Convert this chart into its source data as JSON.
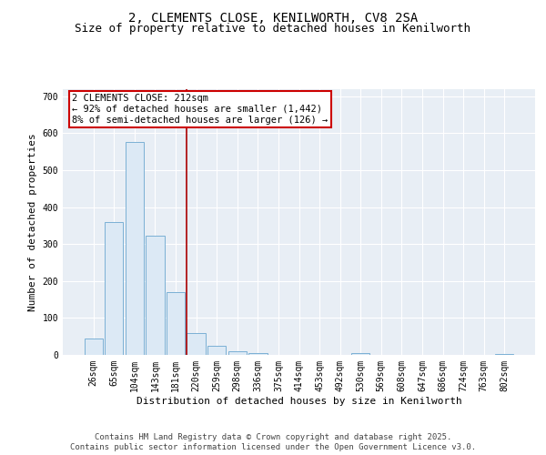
{
  "title_line1": "2, CLEMENTS CLOSE, KENILWORTH, CV8 2SA",
  "title_line2": "Size of property relative to detached houses in Kenilworth",
  "xlabel": "Distribution of detached houses by size in Kenilworth",
  "ylabel": "Number of detached properties",
  "categories": [
    "26sqm",
    "65sqm",
    "104sqm",
    "143sqm",
    "181sqm",
    "220sqm",
    "259sqm",
    "298sqm",
    "336sqm",
    "375sqm",
    "414sqm",
    "453sqm",
    "492sqm",
    "530sqm",
    "569sqm",
    "608sqm",
    "647sqm",
    "686sqm",
    "724sqm",
    "763sqm",
    "802sqm"
  ],
  "values": [
    45,
    360,
    575,
    323,
    170,
    60,
    25,
    10,
    5,
    0,
    0,
    0,
    0,
    5,
    0,
    0,
    0,
    0,
    0,
    0,
    3
  ],
  "bar_color": "#dce9f5",
  "bar_edge_color": "#7ab0d4",
  "plot_bg_color": "#e8eef5",
  "grid_color": "#ffffff",
  "fig_bg_color": "#ffffff",
  "vline_x_index": 5,
  "vline_color": "#aa0000",
  "annotation_text": "2 CLEMENTS CLOSE: 212sqm\n← 92% of detached houses are smaller (1,442)\n8% of semi-detached houses are larger (126) →",
  "annotation_box_color": "#cc0000",
  "ylim": [
    0,
    720
  ],
  "yticks": [
    0,
    100,
    200,
    300,
    400,
    500,
    600,
    700
  ],
  "footer_line1": "Contains HM Land Registry data © Crown copyright and database right 2025.",
  "footer_line2": "Contains public sector information licensed under the Open Government Licence v3.0.",
  "title_fontsize": 10,
  "subtitle_fontsize": 9,
  "axis_label_fontsize": 8,
  "tick_fontsize": 7,
  "footer_fontsize": 6.5,
  "ann_fontsize": 7.5
}
